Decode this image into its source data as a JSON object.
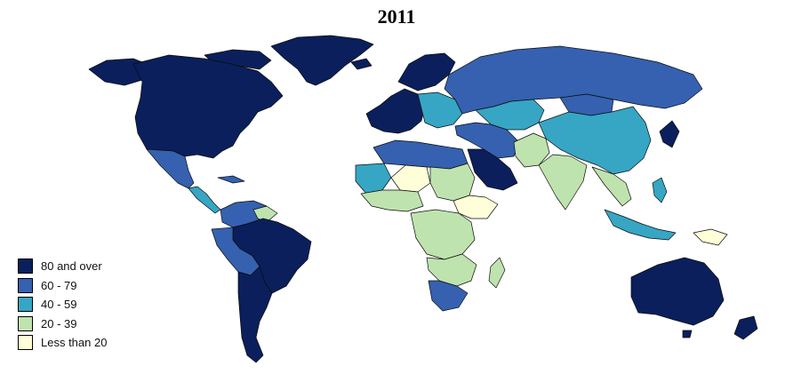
{
  "title": "2011",
  "legend": {
    "items": [
      {
        "label": "80 and over",
        "color": "#0a1f5c"
      },
      {
        "label": "60 - 79",
        "color": "#3561b0"
      },
      {
        "label": "40 - 59",
        "color": "#36a6c4"
      },
      {
        "label": "20 - 39",
        "color": "#bfe3ae"
      },
      {
        "label": "Less than 20",
        "color": "#fefed8"
      }
    ]
  },
  "colors": {
    "80_and_over": "#0a1f5c",
    "60_79": "#3561b0",
    "40_59": "#36a6c4",
    "20_39": "#bfe3ae",
    "less_than_20": "#fefed8",
    "border": "#0b0b0b",
    "background": "#ffffff"
  }
}
